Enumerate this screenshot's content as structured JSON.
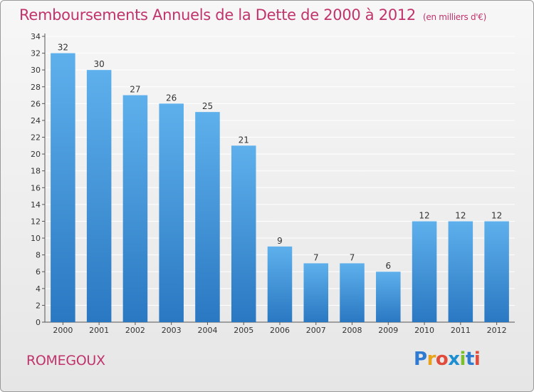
{
  "header": {
    "title": "Remboursements Annuels de la Dette de 2000 à 2012",
    "unit": "(en milliers d'€)"
  },
  "footer": {
    "commune": "ROMEGOUX",
    "logo_letters": [
      "P",
      "r",
      "o",
      "x",
      "i",
      "t",
      "i"
    ],
    "logo_colors": [
      "#2f7bd1",
      "#e8a21c",
      "#e14b3b",
      "#1c8fd1",
      "#7cbf2e",
      "#2f7bd1",
      "#e14b3b"
    ]
  },
  "chart_data": {
    "type": "bar",
    "title": "Remboursements Annuels de la Dette de 2000 à 2012",
    "xlabel": "",
    "ylabel": "",
    "categories": [
      "2000",
      "2001",
      "2002",
      "2003",
      "2004",
      "2005",
      "2006",
      "2007",
      "2008",
      "2009",
      "2010",
      "2011",
      "2012"
    ],
    "values": [
      32,
      30,
      27,
      26,
      25,
      21,
      9,
      7,
      7,
      6,
      12,
      12,
      12
    ],
    "ylim": [
      0,
      34
    ],
    "yticks": [
      0,
      2,
      4,
      6,
      8,
      10,
      12,
      14,
      16,
      18,
      20,
      22,
      24,
      26,
      28,
      30,
      32,
      34
    ],
    "grid": true,
    "bar_color": "#4a9ee0"
  }
}
